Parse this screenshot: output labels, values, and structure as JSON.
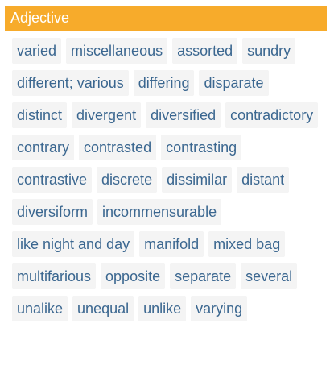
{
  "header": {
    "title": "Adjective"
  },
  "colors": {
    "header_background": "#f7ab2b",
    "chip_background": "#f4f4f4",
    "chip_text": "#3b6790"
  },
  "synonyms": [
    "varied",
    "miscellaneous",
    "assorted",
    "sundry",
    "different; various",
    "differing",
    "disparate",
    "distinct",
    "divergent",
    "diversified",
    "contradictory",
    "contrary",
    "contrasted",
    "contrasting",
    "contrastive",
    "discrete",
    "dissimilar",
    "distant",
    "diversiform",
    "incommensurable",
    "like night and day",
    "manifold",
    "mixed bag",
    "multifarious",
    "opposite",
    "separate",
    "several",
    "unalike",
    "unequal",
    "unlike",
    "varying"
  ]
}
